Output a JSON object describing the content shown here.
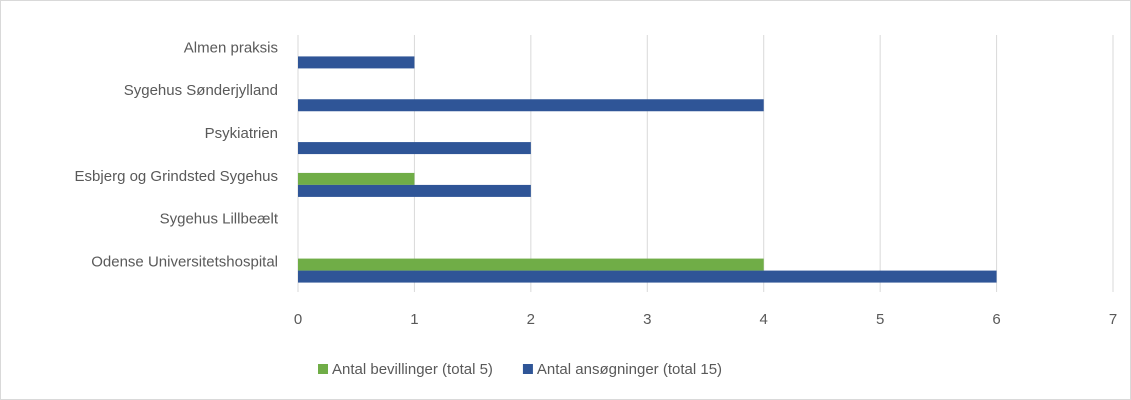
{
  "chart_data": {
    "type": "bar",
    "orientation": "horizontal",
    "categories": [
      "Almen praksis",
      "Sygehus Sønderjylland",
      "Psykiatrien",
      "Esbjerg og Grindsted Sygehus",
      "Sygehus Lillbeælt",
      "Odense Universitetshospital"
    ],
    "series": [
      {
        "name": "Antal bevillinger (total 5)",
        "color": "#70ad47",
        "values": [
          0,
          0,
          0,
          1,
          0,
          4
        ]
      },
      {
        "name": "Antal ansøgninger (total 15)",
        "color": "#2f5597",
        "values": [
          1,
          4,
          2,
          2,
          0,
          6
        ]
      }
    ],
    "xlim": [
      0,
      7
    ],
    "xticks": [
      0,
      1,
      2,
      3,
      4,
      5,
      6,
      7
    ],
    "grid": true,
    "legend": "bottom"
  }
}
